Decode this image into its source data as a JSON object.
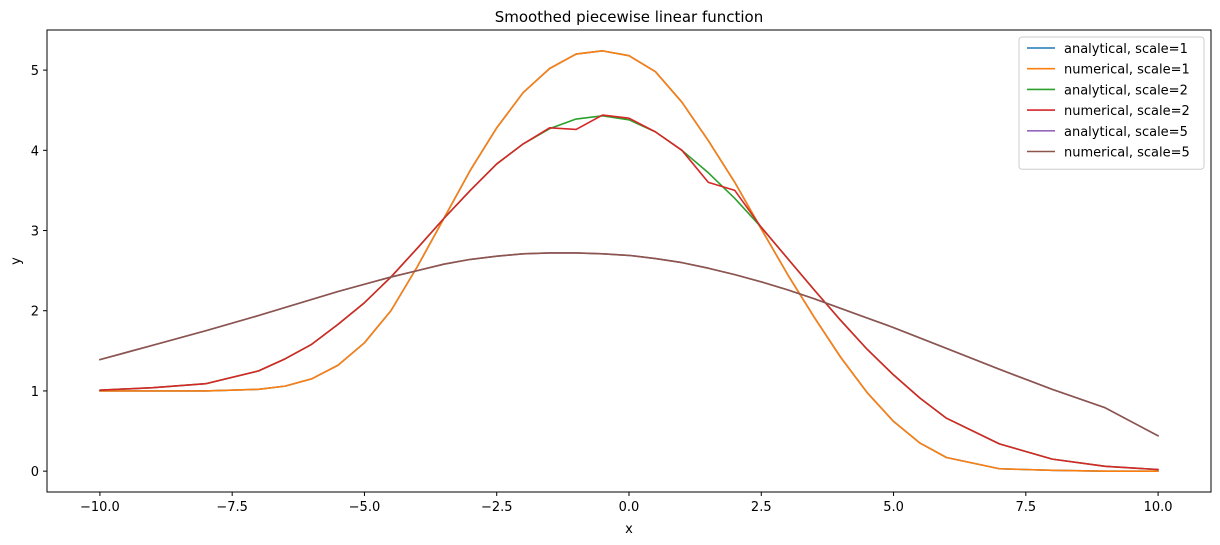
{
  "chart_data": {
    "type": "line",
    "title": "Smoothed piecewise linear function",
    "xlabel": "x",
    "ylabel": "y",
    "xlim": [
      -11.0,
      11.0
    ],
    "ylim": [
      -0.26,
      5.5
    ],
    "xticks": [
      -10.0,
      -7.5,
      -5.0,
      -2.5,
      0.0,
      2.5,
      5.0,
      7.5,
      10.0
    ],
    "xtick_labels": [
      "−10.0",
      "−7.5",
      "−5.0",
      "−2.5",
      "0.0",
      "2.5",
      "5.0",
      "7.5",
      "10.0"
    ],
    "yticks": [
      0,
      1,
      2,
      3,
      4,
      5
    ],
    "ytick_labels": [
      "0",
      "1",
      "2",
      "3",
      "4",
      "5"
    ],
    "grid": false,
    "legend_position": "top-right",
    "x": [
      -10,
      -9,
      -8,
      -7,
      -6.5,
      -6,
      -5.5,
      -5,
      -4.5,
      -4,
      -3.5,
      -3,
      -2.5,
      -2,
      -1.5,
      -1,
      -0.5,
      0,
      0.5,
      1,
      1.5,
      2,
      2.5,
      3,
      3.5,
      4,
      4.5,
      5,
      5.5,
      6,
      7,
      8,
      9,
      10
    ],
    "series": [
      {
        "name": "analytical, scale=1",
        "color": "#1f77b4",
        "values": [
          1.0,
          1.0,
          1.0,
          1.02,
          1.06,
          1.15,
          1.32,
          1.6,
          2.0,
          2.55,
          3.15,
          3.75,
          4.28,
          4.72,
          5.02,
          5.2,
          5.24,
          5.18,
          4.98,
          4.6,
          4.12,
          3.6,
          3.02,
          2.45,
          1.92,
          1.42,
          0.98,
          0.62,
          0.35,
          0.17,
          0.03,
          0.01,
          0.0,
          0.0
        ]
      },
      {
        "name": "numerical, scale=1",
        "color": "#ff7f0e",
        "values": [
          1.0,
          1.0,
          1.0,
          1.02,
          1.06,
          1.15,
          1.32,
          1.6,
          2.0,
          2.55,
          3.15,
          3.75,
          4.28,
          4.72,
          5.02,
          5.2,
          5.24,
          5.18,
          4.98,
          4.6,
          4.12,
          3.6,
          3.02,
          2.45,
          1.92,
          1.42,
          0.98,
          0.62,
          0.35,
          0.17,
          0.03,
          0.01,
          0.0,
          0.0
        ]
      },
      {
        "name": "analytical, scale=2",
        "color": "#2ca02c",
        "values": [
          1.01,
          1.04,
          1.09,
          1.25,
          1.4,
          1.58,
          1.83,
          2.1,
          2.42,
          2.78,
          3.15,
          3.5,
          3.83,
          4.08,
          4.27,
          4.39,
          4.43,
          4.38,
          4.23,
          4.0,
          3.72,
          3.4,
          3.04,
          2.65,
          2.26,
          1.88,
          1.52,
          1.2,
          0.91,
          0.66,
          0.34,
          0.15,
          0.06,
          0.02
        ]
      },
      {
        "name": "numerical, scale=2",
        "color": "#d62728",
        "values": [
          1.01,
          1.04,
          1.09,
          1.25,
          1.4,
          1.58,
          1.83,
          2.1,
          2.42,
          2.78,
          3.15,
          3.5,
          3.83,
          4.08,
          4.28,
          4.26,
          4.44,
          4.4,
          4.23,
          4.0,
          3.6,
          3.5,
          3.04,
          2.65,
          2.26,
          1.88,
          1.52,
          1.2,
          0.91,
          0.66,
          0.34,
          0.15,
          0.06,
          0.02
        ]
      },
      {
        "name": "analytical, scale=5",
        "color": "#9467bd",
        "values": [
          1.39,
          1.57,
          1.75,
          1.94,
          2.04,
          2.14,
          2.24,
          2.33,
          2.42,
          2.5,
          2.58,
          2.64,
          2.68,
          2.71,
          2.72,
          2.72,
          2.71,
          2.69,
          2.65,
          2.6,
          2.53,
          2.45,
          2.36,
          2.26,
          2.15,
          2.03,
          1.91,
          1.79,
          1.66,
          1.53,
          1.27,
          1.02,
          0.79,
          0.44
        ]
      },
      {
        "name": "numerical, scale=5",
        "color": "#8c564b",
        "values": [
          1.39,
          1.57,
          1.75,
          1.94,
          2.04,
          2.14,
          2.24,
          2.33,
          2.42,
          2.5,
          2.58,
          2.64,
          2.68,
          2.71,
          2.72,
          2.72,
          2.71,
          2.69,
          2.65,
          2.6,
          2.53,
          2.45,
          2.36,
          2.26,
          2.15,
          2.03,
          1.91,
          1.79,
          1.66,
          1.53,
          1.27,
          1.02,
          0.79,
          0.44
        ]
      }
    ]
  }
}
